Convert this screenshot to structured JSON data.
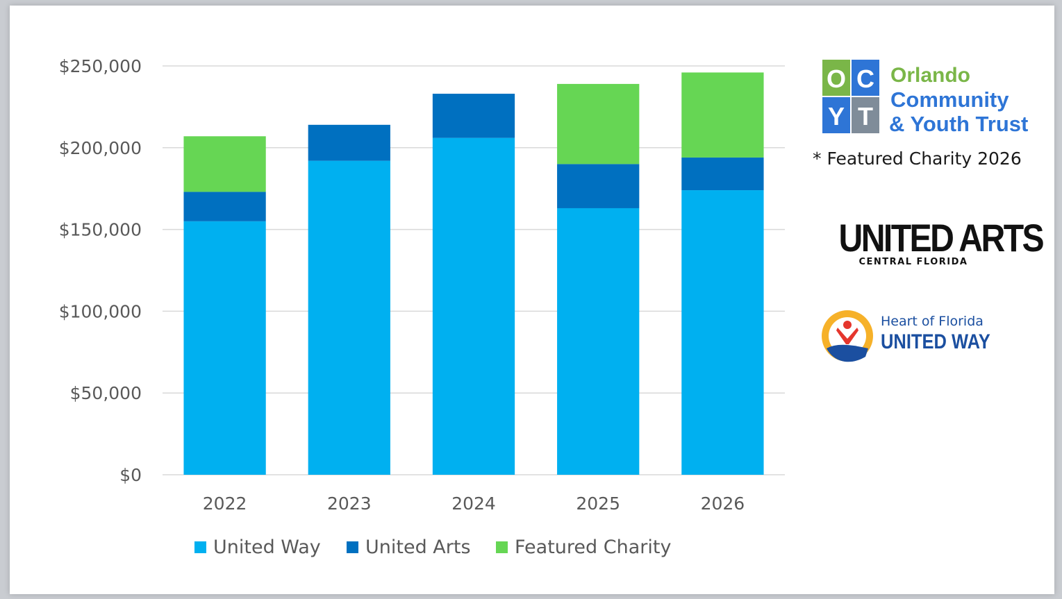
{
  "chart_data": {
    "type": "bar",
    "stacked": true,
    "categories": [
      "2022",
      "2023",
      "2024",
      "2025",
      "2026"
    ],
    "series": [
      {
        "name": "United Way",
        "color": "#00b0f0",
        "values": [
          155000,
          192000,
          206000,
          163000,
          174000
        ]
      },
      {
        "name": "United Arts",
        "color": "#0070c0",
        "values": [
          18000,
          22000,
          27000,
          27000,
          20000
        ]
      },
      {
        "name": "Featured Charity",
        "color": "#66d654",
        "values": [
          34000,
          0,
          0,
          49000,
          52000
        ]
      }
    ],
    "ylim": [
      0,
      250000
    ],
    "yticks": [
      "$0",
      "$50,000",
      "$100,000",
      "$150,000",
      "$200,000",
      "$250,000"
    ],
    "grid": true,
    "legend_position": "bottom",
    "title": "",
    "xlabel": "",
    "ylabel": ""
  },
  "sidebar": {
    "ocyt_logo": {
      "line1": "Orlando",
      "line2": "Community",
      "line3": "& Youth Trust",
      "tiles": [
        "O",
        "C",
        "Y",
        "T"
      ]
    },
    "featured_note": "* Featured Charity 2026",
    "united_arts_logo": {
      "main": "UNITED ARTS",
      "sub": "CENTRAL FLORIDA"
    },
    "united_way_logo": {
      "line1": "Heart of Florida",
      "line2": "UNITED WAY"
    }
  }
}
